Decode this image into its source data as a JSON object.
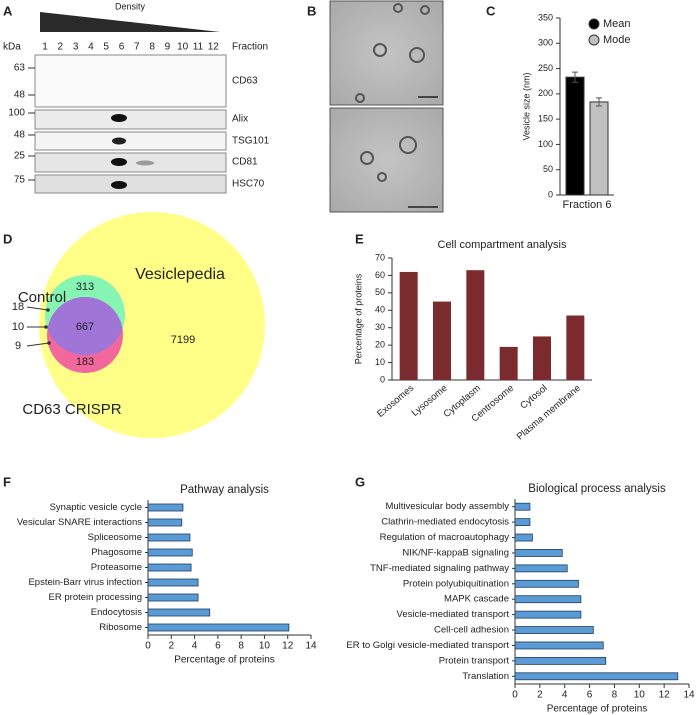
{
  "panel_labels": [
    "A",
    "B",
    "C",
    "D",
    "E",
    "F",
    "G"
  ],
  "blot": {
    "title": "Density",
    "kda_label": "kDa",
    "fraction_label": "Fraction",
    "fractions": [
      1,
      2,
      3,
      4,
      5,
      6,
      7,
      8,
      9,
      10,
      11,
      12
    ],
    "bands": [
      {
        "name": "CD63",
        "markers": [
          63,
          48
        ]
      },
      {
        "name": "Alix",
        "markers": [
          100
        ]
      },
      {
        "name": "TSG101",
        "markers": [
          48
        ]
      },
      {
        "name": "CD81",
        "markers": [
          25
        ]
      },
      {
        "name": "HSC70",
        "markers": [
          75
        ]
      }
    ]
  },
  "venn": {
    "set_labels": [
      "Vesiclepedia",
      "Control",
      "CD63 CRISPR"
    ],
    "counts": [
      313,
      667,
      183,
      7199,
      18,
      10,
      9
    ]
  },
  "chart_data": [
    {
      "type": "bar",
      "categories": [
        "Fraction 6"
      ],
      "ylabel": "Vesicle size (nm)",
      "ylim": [
        0,
        350
      ],
      "yticks": [
        0,
        50,
        100,
        150,
        200,
        250,
        300,
        350
      ],
      "legend": "upper right",
      "series": [
        {
          "name": "Mean",
          "color": "#000000",
          "values": [
            233
          ],
          "errors": [
            10
          ]
        },
        {
          "name": "Mode",
          "color": "#c0c0c0",
          "values": [
            184
          ],
          "errors": [
            8
          ]
        }
      ]
    },
    {
      "type": "bar",
      "title": "Cell compartment analysis",
      "ylabel": "Percentage of proteins",
      "categories": [
        "Exosomes",
        "Lysosome",
        "Cytoplasm",
        "Centrosome",
        "Cytosol",
        "Plasma membrane"
      ],
      "values": [
        62,
        45,
        63,
        19,
        25,
        37
      ],
      "color": "#7b2b2e",
      "ylim": [
        0,
        70
      ],
      "yticks": [
        0,
        10,
        20,
        30,
        40,
        50,
        60,
        70
      ]
    },
    {
      "type": "barh",
      "title": "Pathway analysis",
      "xlabel": "Percentage of proteins",
      "categories": [
        "Synaptic vesicle cycle",
        "Vesicular SNARE interactions",
        "Spliceosome",
        "Phagosome",
        "Proteasome",
        "Epstein-Barr virus infection",
        "ER protein processing",
        "Endocytosis",
        "Ribosome"
      ],
      "values": [
        3.0,
        2.9,
        3.6,
        3.8,
        3.7,
        4.3,
        4.3,
        5.3,
        12.1
      ],
      "color": "#5b9bd5",
      "xlim": [
        0,
        14
      ],
      "xticks": [
        0,
        2,
        4,
        6,
        8,
        10,
        12,
        14
      ]
    },
    {
      "type": "barh",
      "title": "Biological process analysis",
      "xlabel": "Percentage of proteins",
      "categories": [
        "Multivesicular body assembly",
        "Clathrin-mediated endocytosis",
        "Regulation of macroautophagy",
        "NIK/NF-kappaB signaling",
        "TNF-mediated signaling pathway",
        "Protein polyubiquitination",
        "MAPK cascade",
        "Vesicle-mediated transport",
        "Cell-cell adhesion",
        "ER to Golgi vesicle-mediated transport",
        "Protein transport",
        "Translation"
      ],
      "values": [
        1.2,
        1.2,
        1.4,
        3.8,
        4.2,
        5.1,
        5.3,
        5.3,
        6.3,
        7.1,
        7.3,
        13.1
      ],
      "color": "#5b9bd5",
      "xlim": [
        0,
        14
      ],
      "xticks": [
        0,
        2,
        4,
        6,
        8,
        10,
        12,
        14
      ]
    }
  ]
}
